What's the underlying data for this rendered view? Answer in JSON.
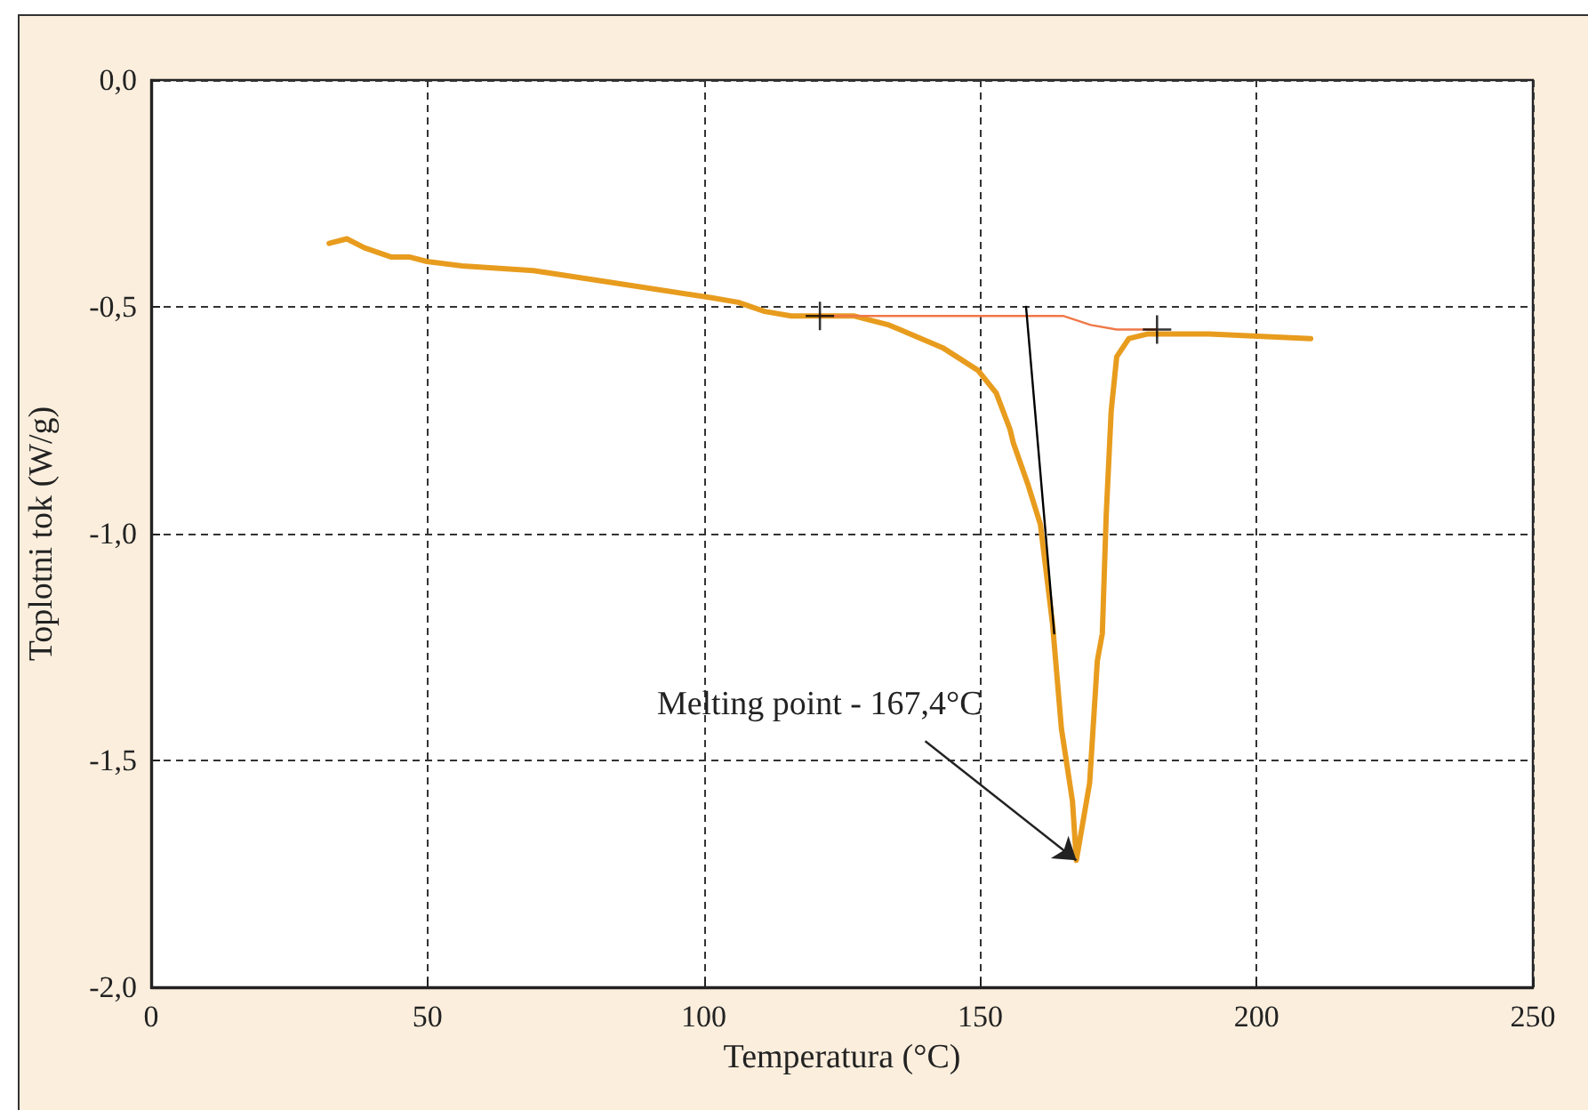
{
  "chart_data": {
    "type": "line",
    "xlabel": "Temperatura (°C)",
    "ylabel": "Toplotni tok (W/g)",
    "annotations": [
      {
        "text": "Melting point - 167,4°C",
        "x": 167.4,
        "y": -1.72
      }
    ],
    "series": [
      {
        "color": "#e89c1e",
        "marker": "none",
        "x": [
          32.2,
          35.4,
          38.6,
          43.4,
          46.7,
          49.9,
          56.3,
          69.2,
          85.3,
          101.4,
          106.2,
          111,
          115.8,
          120.7,
          127.1,
          133.5,
          143.2,
          149.6,
          152.9,
          155.4,
          156,
          158.6,
          160.9,
          163.1,
          164.7,
          166.7,
          167.4,
          169.8,
          171.2,
          172.1,
          172.8,
          173.7,
          174.7,
          176.9,
          180.2,
          191.4,
          209.8
        ],
        "values": [
          -0.36,
          -0.35,
          -0.37,
          -0.39,
          -0.39,
          -0.4,
          -0.41,
          -0.42,
          -0.45,
          -0.48,
          -0.49,
          -0.51,
          -0.52,
          -0.52,
          -0.52,
          -0.54,
          -0.59,
          -0.64,
          -0.69,
          -0.77,
          -0.8,
          -0.89,
          -0.98,
          -1.2,
          -1.43,
          -1.59,
          -1.72,
          -1.55,
          -1.28,
          -1.22,
          -0.96,
          -0.73,
          -0.61,
          -0.57,
          -0.56,
          -0.56,
          -0.57
        ]
      },
      {
        "color": "#f07848",
        "marker": "none",
        "x": [
          120.7,
          157.6,
          165,
          170,
          174.7,
          182
        ],
        "values": [
          -0.52,
          -0.52,
          -0.52,
          -0.54,
          -0.55,
          -0.55
        ]
      },
      {
        "color": "#000000",
        "marker": "none",
        "x": [
          158.3,
          163.4
        ],
        "values": [
          -0.5,
          -1.22
        ]
      },
      {
        "type": "scatter",
        "color": "#000000",
        "marker": "cross",
        "x": [
          121,
          182
        ],
        "values": [
          -0.52,
          -0.55
        ]
      }
    ],
    "xlim": [
      0,
      250
    ],
    "xticks": [
      0,
      50,
      100,
      150,
      200,
      250
    ],
    "ylim": [
      -2,
      0
    ],
    "yticks": [
      {
        "value": -2,
        "label": "-2,0"
      },
      {
        "value": -1.5,
        "label": "-1,5"
      },
      {
        "value": -1,
        "label": "-1,0"
      },
      {
        "value": -0.5,
        "label": "-0,5"
      },
      {
        "value": 0,
        "label": "0,0"
      }
    ],
    "grid": true
  }
}
